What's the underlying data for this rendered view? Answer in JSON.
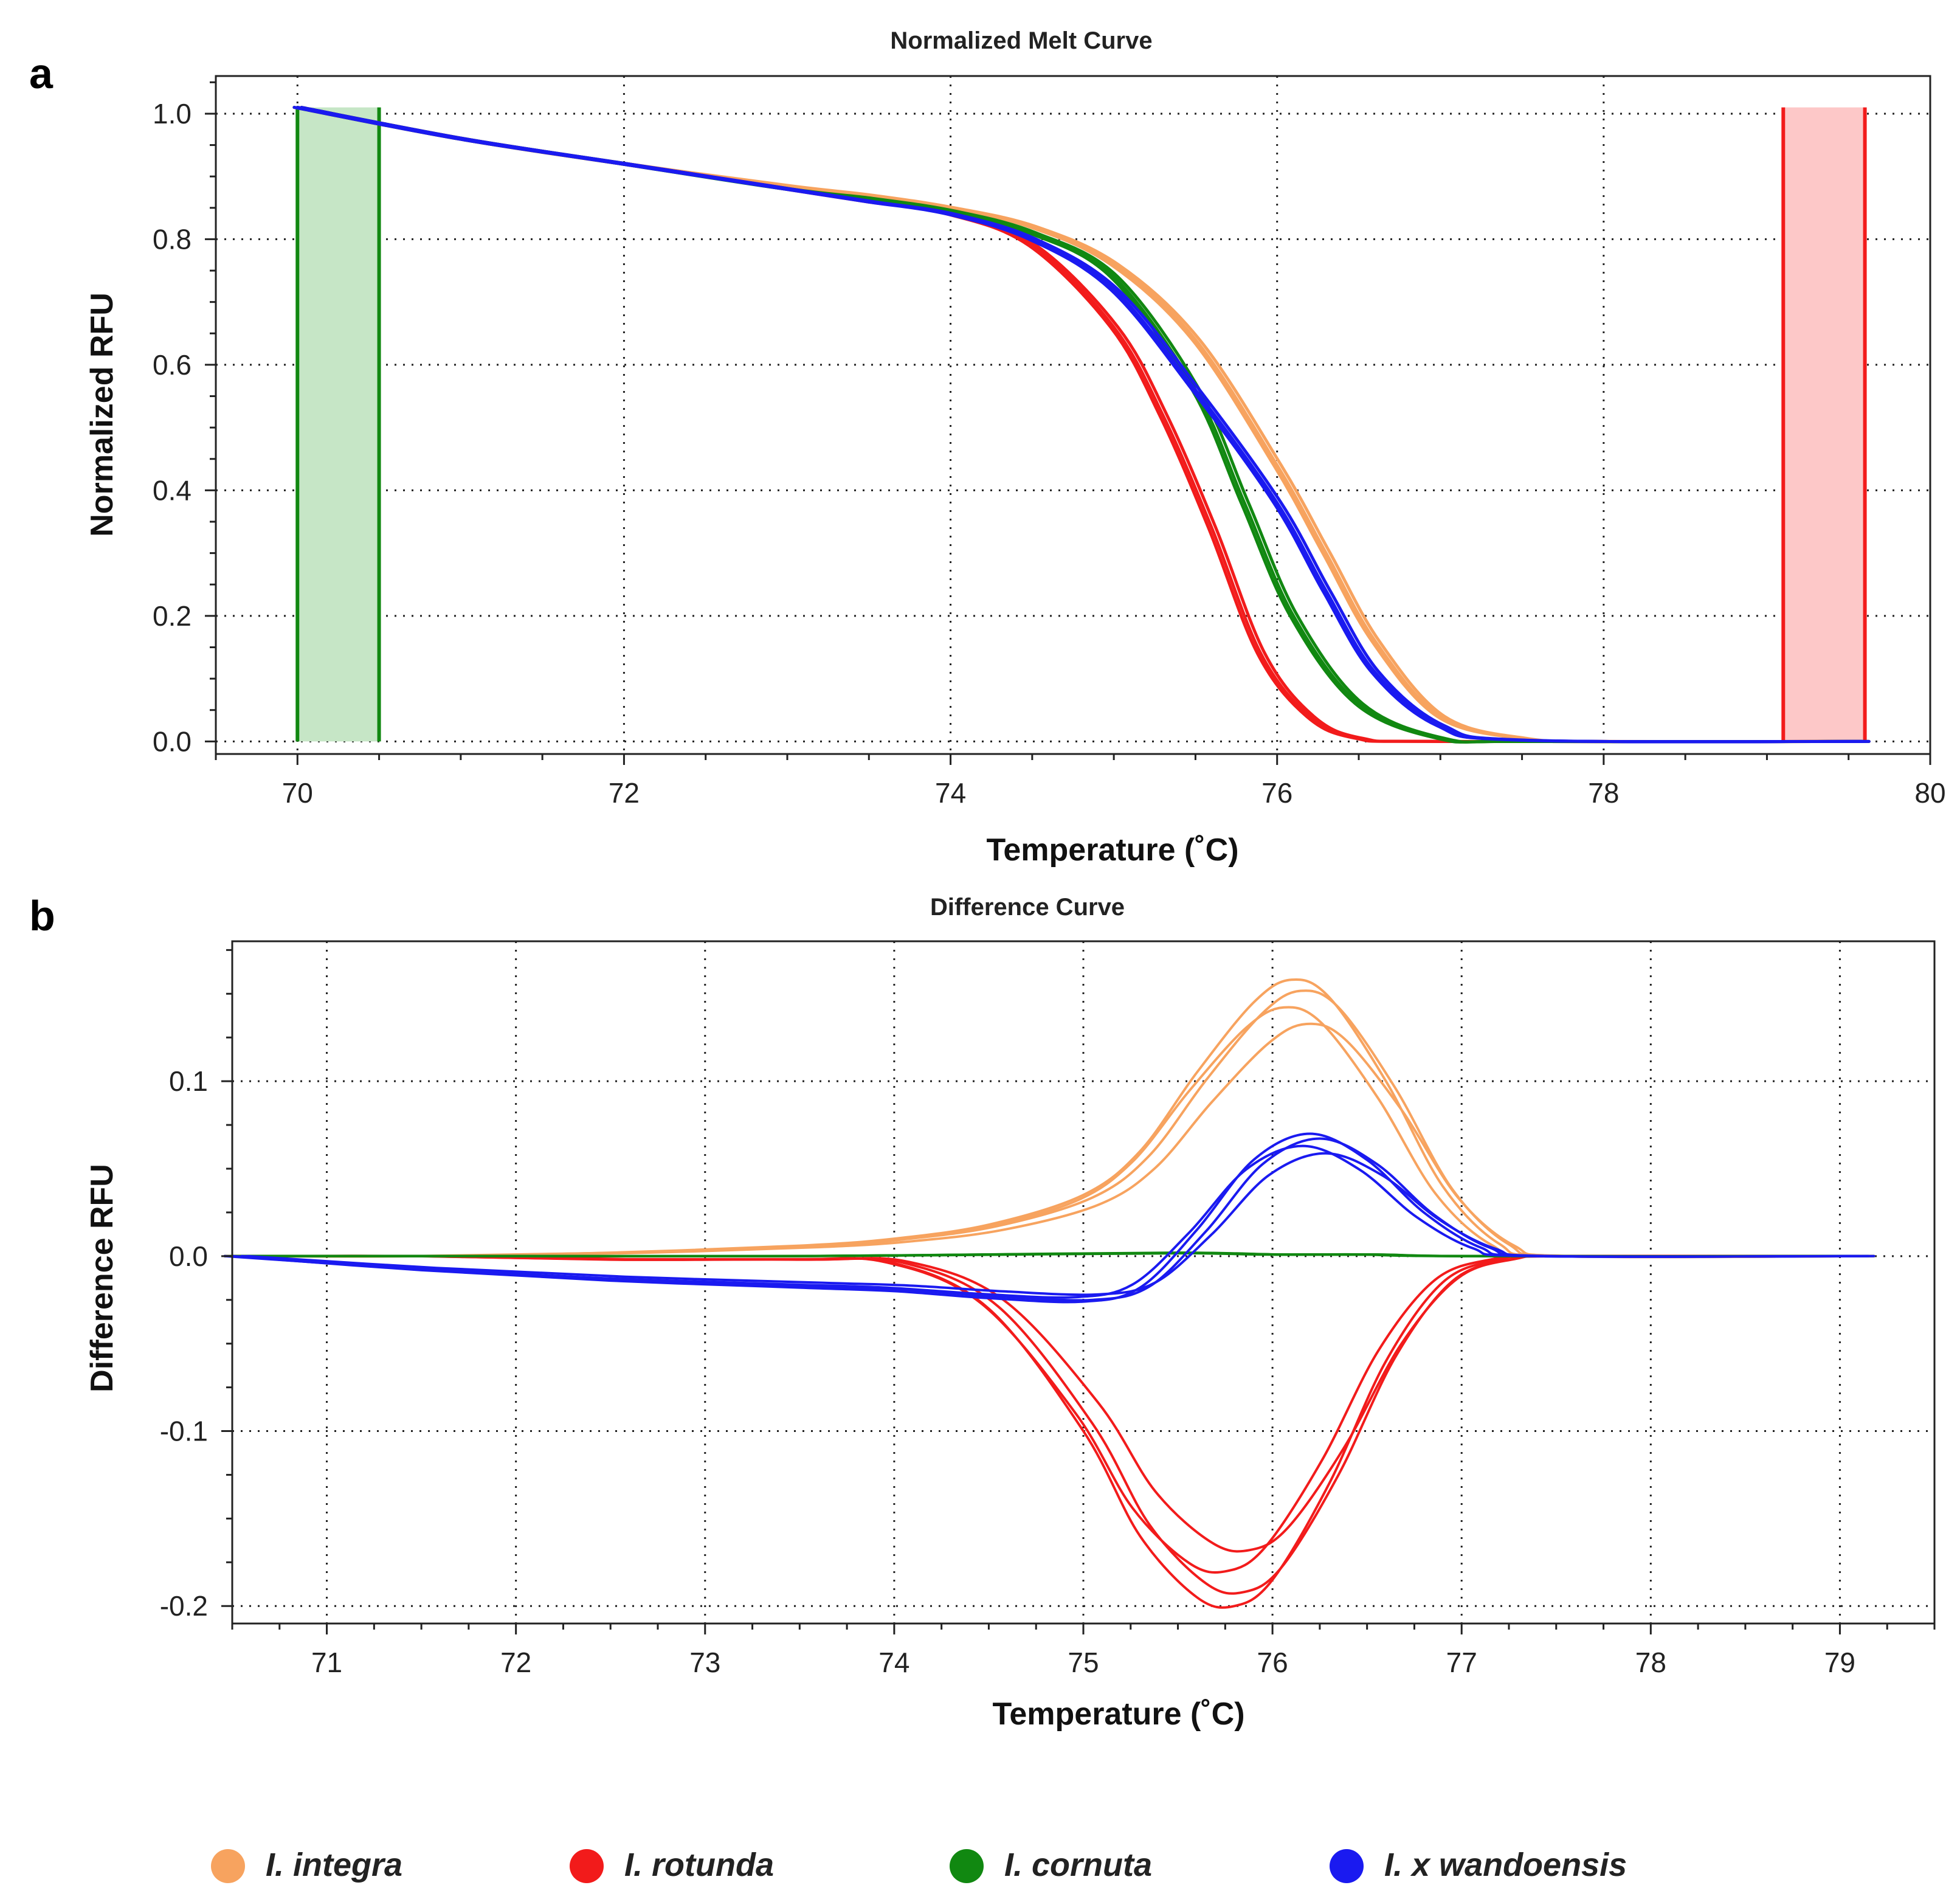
{
  "figure": {
    "legend": [
      {
        "label": "I. integra",
        "color": "#F7A35F"
      },
      {
        "label": "I. rotunda",
        "color": "#F21B1B"
      },
      {
        "label": "I. cornuta",
        "color": "#118811"
      },
      {
        "label": "I. x wandoensis",
        "color": "#1A1AF0"
      }
    ]
  },
  "chart_data": [
    {
      "panel": "a",
      "type": "line",
      "title": "Normalized Melt Curve",
      "xlabel": "Temperature (˚C)",
      "ylabel": "Normalized RFU",
      "xlim": [
        69.5,
        80
      ],
      "ylim": [
        -0.02,
        1.06
      ],
      "xticks": [
        "70",
        "72",
        "74",
        "76",
        "78",
        "80"
      ],
      "yticks": [
        "0.0",
        "0.2",
        "0.4",
        "0.6",
        "0.8",
        "1.0"
      ],
      "grid": true,
      "regions": [
        {
          "name": "pre-melt",
          "x": [
            70.0,
            70.5
          ],
          "y": [
            0,
            1.01
          ],
          "color": "#118811",
          "fill": "#c6e6c6"
        },
        {
          "name": "post-melt",
          "x": [
            79.1,
            79.6
          ],
          "y": [
            0,
            1.01
          ],
          "color": "#F21B1B",
          "fill": "#fdc8c8"
        }
      ],
      "series": [
        {
          "name": "I. integra",
          "color": "#F7A35F",
          "x": [
            70,
            71,
            72,
            73,
            73.5,
            74,
            74.5,
            75,
            75.5,
            76,
            76.3,
            76.6,
            77,
            77.5,
            78,
            79.6
          ],
          "values": [
            1.01,
            0.96,
            0.92,
            0.885,
            0.87,
            0.85,
            0.82,
            0.76,
            0.64,
            0.44,
            0.3,
            0.16,
            0.04,
            0.005,
            0.0,
            0.0
          ]
        },
        {
          "name": "I. rotunda",
          "color": "#F21B1B",
          "x": [
            70,
            71,
            72,
            73,
            73.5,
            74,
            74.5,
            75,
            75.3,
            75.6,
            75.9,
            76.2,
            76.5,
            77,
            79.6
          ],
          "values": [
            1.01,
            0.96,
            0.92,
            0.88,
            0.86,
            0.84,
            0.79,
            0.66,
            0.52,
            0.34,
            0.14,
            0.04,
            0.005,
            0.0,
            0.0
          ]
        },
        {
          "name": "I. cornuta",
          "color": "#118811",
          "x": [
            70,
            71,
            72,
            73,
            73.5,
            74,
            74.5,
            75,
            75.5,
            75.8,
            76.1,
            76.5,
            77,
            77.5,
            79.6
          ],
          "values": [
            1.01,
            0.96,
            0.92,
            0.88,
            0.865,
            0.845,
            0.81,
            0.74,
            0.56,
            0.38,
            0.2,
            0.06,
            0.005,
            0.0,
            0.0
          ]
        },
        {
          "name": "I. x wandoensis",
          "color": "#1A1AF0",
          "x": [
            70,
            71,
            72,
            73,
            73.5,
            74,
            74.5,
            75,
            75.5,
            76,
            76.3,
            76.6,
            77,
            77.5,
            79.6
          ],
          "values": [
            1.01,
            0.96,
            0.92,
            0.88,
            0.86,
            0.84,
            0.8,
            0.72,
            0.56,
            0.38,
            0.24,
            0.11,
            0.025,
            0.002,
            0.0
          ]
        }
      ]
    },
    {
      "panel": "b",
      "type": "line",
      "title": "Difference Curve",
      "xlabel": "Temperature (˚C)",
      "ylabel": "Difference RFU",
      "xlim": [
        70.5,
        79.5
      ],
      "ylim": [
        -0.21,
        0.18
      ],
      "xticks": [
        "71",
        "72",
        "73",
        "74",
        "75",
        "76",
        "77",
        "78",
        "79"
      ],
      "yticks": [
        "-0.2",
        "-0.1",
        "0.0",
        "0.1"
      ],
      "grid": true,
      "series": [
        {
          "name": "I. integra",
          "color": "#F7A35F",
          "x": [
            70.5,
            71.5,
            72.5,
            73.5,
            74,
            74.5,
            75,
            75.3,
            75.6,
            75.9,
            76.1,
            76.3,
            76.6,
            76.9,
            77.2,
            77.5,
            79.1
          ],
          "values": [
            0.0,
            0.0,
            0.002,
            0.006,
            0.01,
            0.018,
            0.035,
            0.06,
            0.105,
            0.145,
            0.158,
            0.148,
            0.1,
            0.04,
            0.007,
            0.0,
            0.0
          ]
        },
        {
          "name": "I. rotunda",
          "color": "#F21B1B",
          "x": [
            70.5,
            71.5,
            72.5,
            73.5,
            74,
            74.5,
            75,
            75.3,
            75.6,
            75.8,
            76,
            76.3,
            76.6,
            76.9,
            77.2,
            77.5,
            79.1
          ],
          "values": [
            0.0,
            0.0,
            -0.002,
            -0.002,
            -0.004,
            -0.03,
            -0.1,
            -0.16,
            -0.195,
            -0.2,
            -0.185,
            -0.13,
            -0.06,
            -0.015,
            -0.002,
            0.0,
            0.0
          ]
        },
        {
          "name": "I. cornuta",
          "color": "#118811",
          "x": [
            70.5,
            72,
            73.5,
            74.5,
            75.5,
            76,
            76.5,
            77,
            79.1
          ],
          "values": [
            0.0,
            0.0,
            0.0,
            0.001,
            0.002,
            0.001,
            0.001,
            0.0,
            0.0
          ]
        },
        {
          "name": "I. x wandoensis",
          "color": "#1A1AF0",
          "x": [
            70.5,
            71.5,
            72.5,
            73.5,
            74,
            74.5,
            75,
            75.3,
            75.6,
            75.9,
            76.2,
            76.5,
            76.8,
            77.1,
            77.4,
            79.1
          ],
          "values": [
            0.0,
            -0.008,
            -0.014,
            -0.018,
            -0.02,
            -0.024,
            -0.026,
            -0.018,
            0.015,
            0.055,
            0.07,
            0.055,
            0.025,
            0.005,
            0.0,
            0.0
          ]
        }
      ]
    }
  ]
}
